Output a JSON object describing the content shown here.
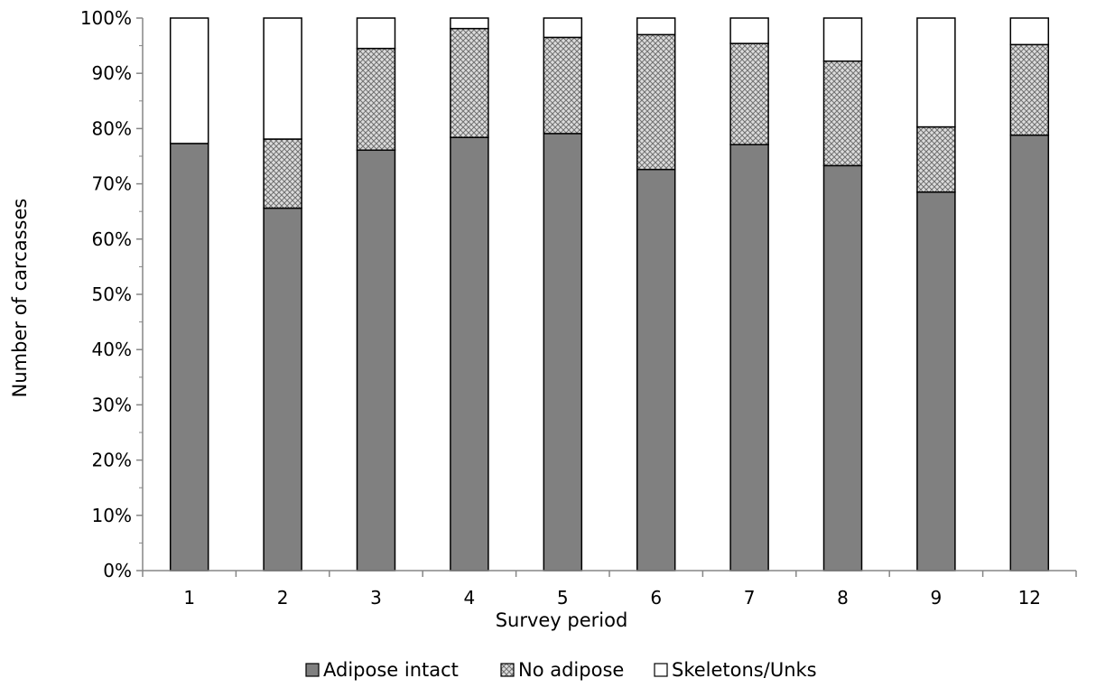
{
  "chart_data": {
    "type": "bar",
    "stacked": true,
    "percent_stacked": true,
    "title": "",
    "xlabel": "Survey period",
    "ylabel": "Number of carcasses",
    "categories": [
      "1",
      "2",
      "3",
      "4",
      "5",
      "6",
      "7",
      "8",
      "9",
      "12"
    ],
    "ylim": [
      0,
      100
    ],
    "ytick_labels": [
      "0%",
      "10%",
      "20%",
      "30%",
      "40%",
      "50%",
      "60%",
      "70%",
      "80%",
      "90%",
      "100%"
    ],
    "grid": false,
    "legend_position": "bottom",
    "series": [
      {
        "name": "Adipose intact",
        "values": [
          77.3,
          65.6,
          76.1,
          78.4,
          79.1,
          72.6,
          77.1,
          73.3,
          68.5,
          78.8
        ],
        "color": "#808080",
        "pattern": "solid"
      },
      {
        "name": "No adipose",
        "values": [
          0.0,
          12.5,
          18.4,
          19.7,
          17.4,
          24.4,
          18.3,
          18.9,
          11.8,
          16.4
        ],
        "color": "#c8c8c8",
        "pattern": "crosshatch"
      },
      {
        "name": "Skeletons/Unks",
        "values": [
          22.7,
          21.9,
          5.5,
          1.9,
          3.5,
          3.0,
          4.6,
          7.8,
          19.7,
          4.8
        ],
        "color": "#ffffff",
        "pattern": "solid"
      }
    ]
  }
}
